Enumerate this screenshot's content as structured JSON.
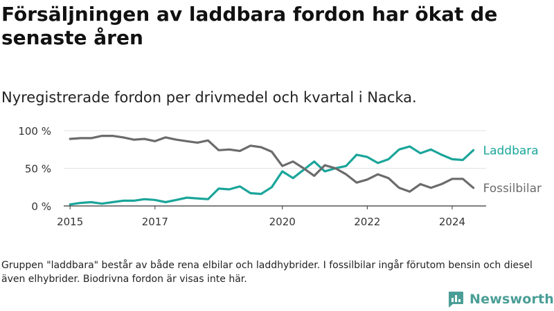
{
  "header": {
    "title": "Försäljningen av laddbara fordon har ökat de senaste åren",
    "subtitle": "Nyregistrerade fordon per drivmedel och kvartal i Nacka."
  },
  "footer": {
    "note": "Gruppen \"laddbara\" består av både rena elbilar och laddhybrider. I fossilbilar ingår förutom bensin och diesel även elhybrider. Biodrivna fordon är visas inte här.",
    "brand": "Newsworthy"
  },
  "colors": {
    "laddbara": "#1aa59a",
    "fossilbilar": "#6b6b6b",
    "brand": "#4a9e96"
  },
  "chart_data": {
    "type": "line",
    "title": "Nyregistrerade fordon per drivmedel och kvartal i Nacka.",
    "xlabel": "",
    "ylabel": "",
    "xlim": [
      2014.85,
      2024.8
    ],
    "ylim": [
      0,
      100
    ],
    "x_ticks": [
      {
        "value": 2015,
        "label": "2015"
      },
      {
        "value": 2017,
        "label": "2017"
      },
      {
        "value": 2020,
        "label": "2020"
      },
      {
        "value": 2022,
        "label": "2022"
      },
      {
        "value": 2024,
        "label": "2024"
      }
    ],
    "y_ticks": [
      {
        "value": 0,
        "label": "0 %"
      },
      {
        "value": 50,
        "label": "50 %"
      },
      {
        "value": 100,
        "label": "100 %"
      }
    ],
    "grid": true,
    "legend": "inline-right",
    "series": [
      {
        "name": "Laddbara",
        "key": "laddbara",
        "x": [
          2015.0,
          2015.25,
          2015.5,
          2015.75,
          2016.0,
          2016.25,
          2016.5,
          2016.75,
          2017.0,
          2017.25,
          2017.5,
          2017.75,
          2018.0,
          2018.25,
          2018.5,
          2018.75,
          2019.0,
          2019.25,
          2019.5,
          2019.75,
          2020.0,
          2020.25,
          2020.5,
          2020.75,
          2021.0,
          2021.25,
          2021.5,
          2021.75,
          2022.0,
          2022.25,
          2022.5,
          2022.75,
          2023.0,
          2023.25,
          2023.5,
          2023.75,
          2024.0,
          2024.25,
          2024.5
        ],
        "values": [
          2,
          4,
          5,
          3,
          5,
          7,
          7,
          9,
          8,
          5,
          8,
          11,
          10,
          9,
          23,
          22,
          26,
          17,
          16,
          25,
          46,
          37,
          48,
          59,
          46,
          50,
          53,
          68,
          65,
          57,
          62,
          75,
          79,
          70,
          75,
          68,
          62,
          61,
          74
        ]
      },
      {
        "name": "Fossilbilar",
        "key": "fossilbilar",
        "x": [
          2015.0,
          2015.25,
          2015.5,
          2015.75,
          2016.0,
          2016.25,
          2016.5,
          2016.75,
          2017.0,
          2017.25,
          2017.5,
          2017.75,
          2018.0,
          2018.25,
          2018.5,
          2018.75,
          2019.0,
          2019.25,
          2019.5,
          2019.75,
          2020.0,
          2020.25,
          2020.5,
          2020.75,
          2021.0,
          2021.25,
          2021.5,
          2021.75,
          2022.0,
          2022.25,
          2022.5,
          2022.75,
          2023.0,
          2023.25,
          2023.5,
          2023.75,
          2024.0,
          2024.25,
          2024.5
        ],
        "values": [
          89,
          90,
          90,
          93,
          93,
          91,
          88,
          89,
          86,
          91,
          88,
          86,
          84,
          87,
          74,
          75,
          73,
          80,
          78,
          72,
          53,
          59,
          50,
          40,
          54,
          50,
          42,
          31,
          35,
          42,
          37,
          24,
          19,
          29,
          24,
          29,
          36,
          36,
          24
        ]
      }
    ]
  }
}
